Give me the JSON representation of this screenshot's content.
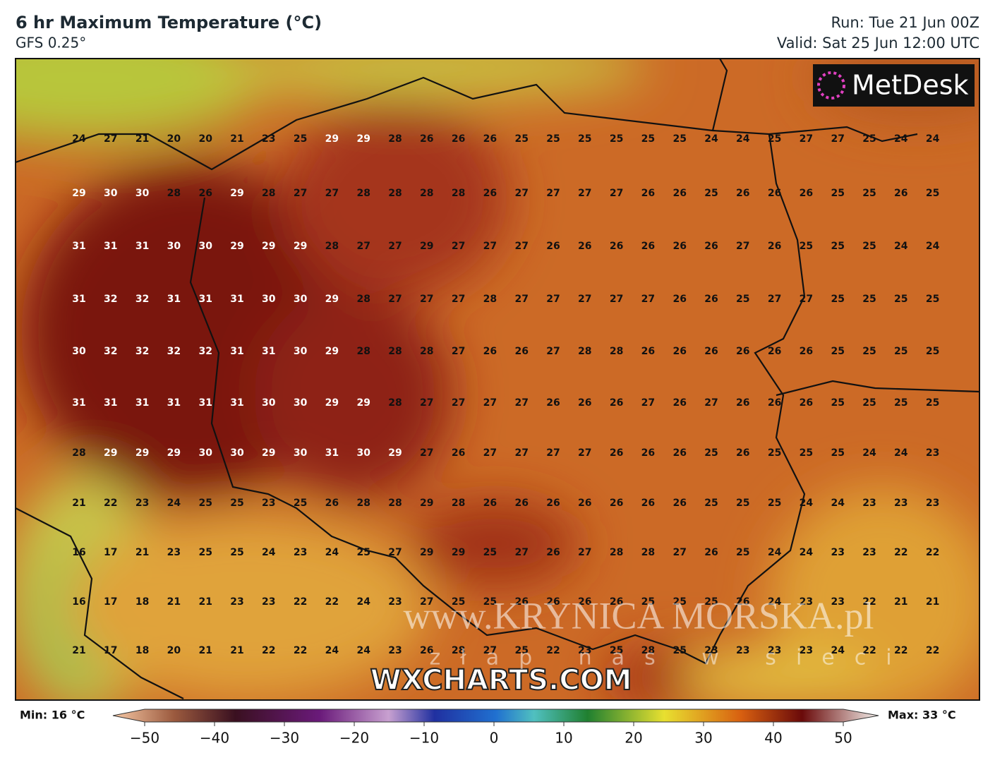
{
  "header": {
    "title": "6 hr Maximum Temperature (°C)",
    "subtitle": "GFS 0.25°",
    "run": "Run: Tue 21 Jun 00Z",
    "valid": "Valid: Sat 25 Jun 12:00 UTC"
  },
  "logo": "MetDesk",
  "grid": [
    [
      24,
      27,
      21,
      20,
      20,
      21,
      23,
      25,
      29,
      29,
      28,
      26,
      26,
      26,
      25,
      25,
      25,
      25,
      25,
      25,
      24,
      24,
      25,
      27,
      27,
      25,
      24,
      24
    ],
    [
      29,
      30,
      30,
      28,
      26,
      29,
      28,
      27,
      27,
      28,
      28,
      28,
      28,
      26,
      27,
      27,
      27,
      27,
      26,
      26,
      25,
      26,
      26,
      26,
      25,
      25,
      26,
      25
    ],
    [
      31,
      31,
      31,
      30,
      30,
      29,
      29,
      29,
      28,
      27,
      27,
      29,
      27,
      27,
      27,
      26,
      26,
      26,
      26,
      26,
      26,
      27,
      26,
      25,
      25,
      25,
      24,
      24
    ],
    [
      31,
      32,
      32,
      31,
      31,
      31,
      30,
      30,
      29,
      28,
      27,
      27,
      27,
      28,
      27,
      27,
      27,
      27,
      27,
      26,
      26,
      25,
      27,
      27,
      25,
      25,
      25,
      25
    ],
    [
      30,
      32,
      32,
      32,
      32,
      31,
      31,
      30,
      29,
      28,
      28,
      28,
      27,
      26,
      26,
      27,
      28,
      28,
      26,
      26,
      26,
      26,
      26,
      26,
      25,
      25,
      25,
      25
    ],
    [
      31,
      31,
      31,
      31,
      31,
      31,
      30,
      30,
      29,
      29,
      28,
      27,
      27,
      27,
      27,
      26,
      26,
      26,
      27,
      26,
      27,
      26,
      26,
      26,
      25,
      25,
      25,
      25
    ],
    [
      28,
      29,
      29,
      29,
      30,
      30,
      29,
      30,
      31,
      30,
      29,
      27,
      26,
      27,
      27,
      27,
      27,
      26,
      26,
      26,
      25,
      26,
      25,
      25,
      25,
      24,
      24,
      23
    ],
    [
      21,
      22,
      23,
      24,
      25,
      25,
      23,
      25,
      26,
      28,
      28,
      29,
      28,
      26,
      26,
      26,
      26,
      26,
      26,
      26,
      25,
      25,
      25,
      24,
      24,
      23,
      23,
      23
    ],
    [
      16,
      17,
      21,
      23,
      25,
      25,
      24,
      23,
      24,
      25,
      27,
      29,
      29,
      25,
      27,
      26,
      27,
      28,
      28,
      27,
      26,
      25,
      24,
      24,
      23,
      23,
      22,
      22
    ],
    [
      16,
      17,
      18,
      21,
      21,
      23,
      23,
      22,
      22,
      24,
      23,
      27,
      25,
      25,
      26,
      26,
      26,
      26,
      25,
      25,
      25,
      26,
      24,
      23,
      23,
      22,
      21,
      21
    ],
    [
      21,
      17,
      18,
      20,
      21,
      21,
      22,
      22,
      24,
      24,
      23,
      26,
      28,
      27,
      25,
      22,
      23,
      25,
      28,
      25,
      23,
      23,
      23,
      23,
      24,
      22,
      22,
      22
    ]
  ],
  "legend": {
    "min_label": "Min: 16 °C",
    "max_label": "Max: 33 °C",
    "ticks": [
      "−50",
      "−40",
      "−30",
      "−20",
      "−10",
      "0",
      "10",
      "20",
      "30",
      "40",
      "50"
    ]
  },
  "watermarks": {
    "wxcharts": "WXCHARTS.COM",
    "site": "www.KRYNICA MORSKA.pl",
    "slogan": "złap nas w sieci"
  }
}
